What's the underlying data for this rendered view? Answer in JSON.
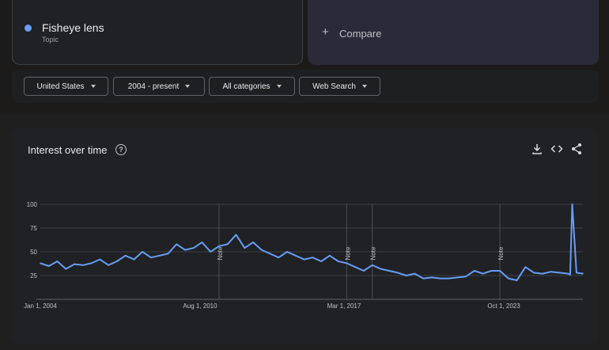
{
  "term": {
    "name": "Fisheye lens",
    "type": "Topic",
    "color": "#669df6"
  },
  "compare": {
    "plus": "+",
    "label": "Compare"
  },
  "filters": [
    {
      "label": "United States"
    },
    {
      "label": "2004 - present"
    },
    {
      "label": "All categories"
    },
    {
      "label": "Web Search"
    }
  ],
  "panel": {
    "title": "Interest over time",
    "help_icon": "help-circle-icon",
    "tools": [
      "download-icon",
      "embed-code-icon",
      "share-icon"
    ]
  },
  "chart_data": {
    "type": "line",
    "title": "Interest over time",
    "x_start": "2004-01",
    "x_end": "2025-04",
    "x_ticks": [
      "Jan 1, 2004",
      "Aug 1, 2010",
      "Mar 1, 2017",
      "Oct 1, 2023"
    ],
    "y_ticks": [
      25,
      50,
      75,
      100
    ],
    "ylim": [
      0,
      100
    ],
    "grid": true,
    "notes": [
      {
        "date": "2011-01",
        "label": "Note"
      },
      {
        "date": "2016-01",
        "label": "Note"
      },
      {
        "date": "2017-01",
        "label": "Note"
      },
      {
        "date": "2022-01",
        "label": "Note"
      }
    ],
    "series": [
      {
        "color": "#669df6",
        "x": [
          "2004-01",
          "2004-05",
          "2004-09",
          "2005-01",
          "2005-05",
          "2005-09",
          "2006-01",
          "2006-05",
          "2006-09",
          "2007-01",
          "2007-05",
          "2007-09",
          "2008-01",
          "2008-05",
          "2008-09",
          "2009-01",
          "2009-05",
          "2009-09",
          "2010-01",
          "2010-05",
          "2010-09",
          "2011-01",
          "2011-05",
          "2011-09",
          "2012-01",
          "2012-05",
          "2012-09",
          "2013-01",
          "2013-05",
          "2013-09",
          "2014-01",
          "2014-05",
          "2014-09",
          "2015-01",
          "2015-05",
          "2015-09",
          "2016-01",
          "2016-05",
          "2016-09",
          "2017-01",
          "2017-05",
          "2017-09",
          "2018-01",
          "2018-05",
          "2018-09",
          "2019-01",
          "2019-05",
          "2019-09",
          "2020-01",
          "2020-05",
          "2020-09",
          "2021-01",
          "2021-05",
          "2021-09",
          "2022-01",
          "2022-05",
          "2022-09",
          "2023-01",
          "2023-05",
          "2023-09",
          "2024-01",
          "2024-05",
          "2024-09",
          "2024-10",
          "2024-11",
          "2025-01",
          "2025-04"
        ],
        "values": [
          38,
          35,
          40,
          32,
          37,
          36,
          38,
          42,
          36,
          40,
          46,
          42,
          50,
          44,
          46,
          48,
          58,
          52,
          54,
          60,
          50,
          56,
          58,
          68,
          54,
          60,
          52,
          48,
          44,
          50,
          46,
          42,
          44,
          40,
          46,
          40,
          38,
          34,
          30,
          36,
          32,
          30,
          28,
          25,
          27,
          22,
          23,
          22,
          22,
          23,
          24,
          30,
          27,
          30,
          30,
          22,
          20,
          34,
          28,
          27,
          29,
          28,
          27,
          26,
          100,
          28,
          27
        ]
      }
    ]
  }
}
